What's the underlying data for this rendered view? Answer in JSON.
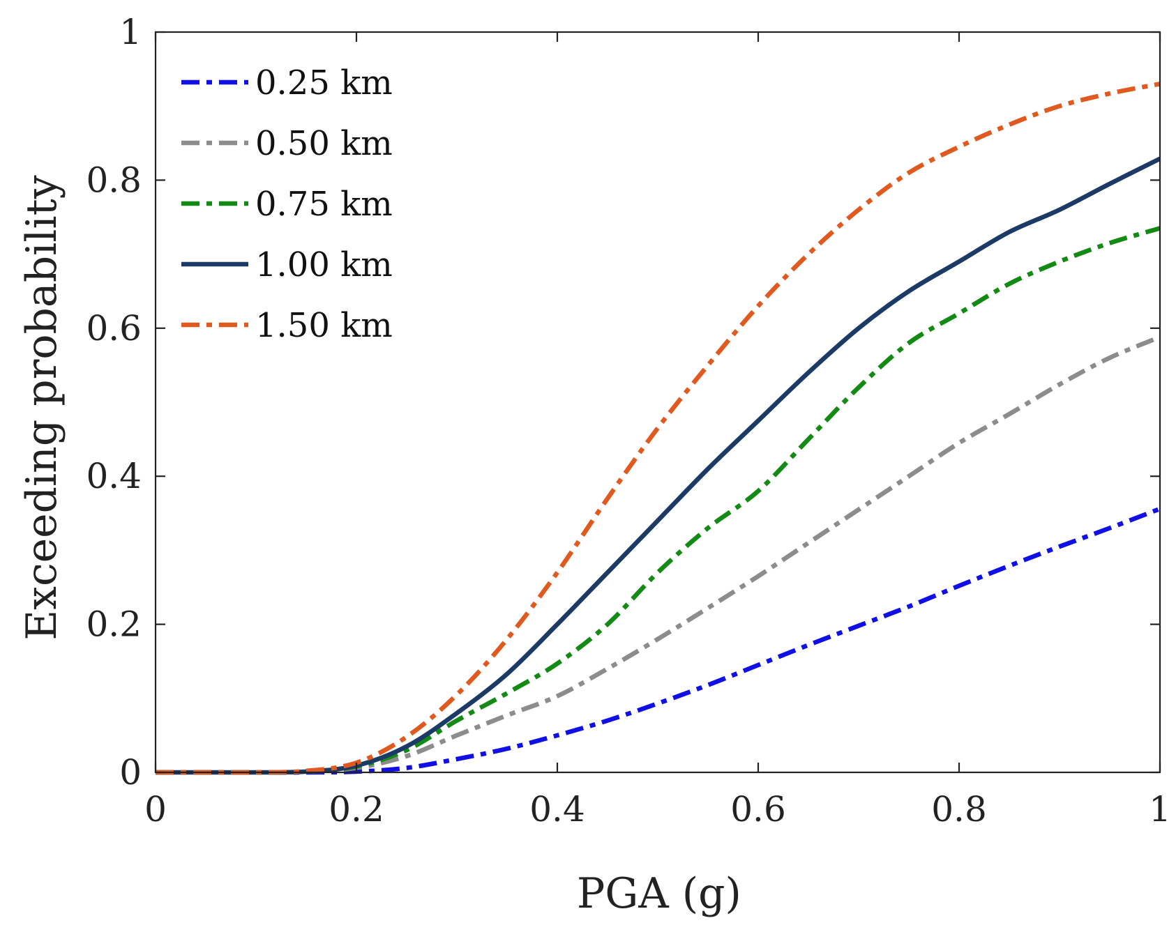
{
  "chart_data": {
    "type": "line",
    "title": "",
    "xlabel": "PGA (g)",
    "ylabel": "Exceeding probability",
    "xlim": [
      0,
      1
    ],
    "ylim": [
      0,
      1
    ],
    "xticks": [
      0,
      0.2,
      0.4,
      0.6,
      0.8,
      1
    ],
    "xtick_labels": [
      "0",
      "0.2",
      "0.4",
      "0.6",
      "0.8",
      "1"
    ],
    "yticks": [
      0,
      0.2,
      0.4,
      0.6,
      0.8,
      1
    ],
    "ytick_labels": [
      "0",
      "0.2",
      "0.4",
      "0.6",
      "0.8",
      "1"
    ],
    "grid": false,
    "legend_position": "top-left",
    "x": [
      0,
      0.05,
      0.1,
      0.15,
      0.2,
      0.25,
      0.3,
      0.35,
      0.4,
      0.45,
      0.5,
      0.55,
      0.6,
      0.65,
      0.7,
      0.75,
      0.8,
      0.85,
      0.9,
      0.95,
      1.0
    ],
    "series": [
      {
        "name": "0.25 km",
        "color": "#1010e6",
        "style": "dash-dot",
        "values": [
          0,
          0,
          0,
          0,
          0.001,
          0.006,
          0.018,
          0.032,
          0.05,
          0.07,
          0.093,
          0.118,
          0.145,
          0.172,
          0.198,
          0.224,
          0.252,
          0.279,
          0.305,
          0.33,
          0.356
        ]
      },
      {
        "name": "0.50 km",
        "color": "#8c8c8c",
        "style": "dash-dot",
        "values": [
          0,
          0,
          0,
          0.001,
          0.006,
          0.022,
          0.05,
          0.077,
          0.103,
          0.14,
          0.18,
          0.222,
          0.265,
          0.31,
          0.355,
          0.4,
          0.445,
          0.484,
          0.524,
          0.56,
          0.588
        ]
      },
      {
        "name": "0.75 km",
        "color": "#138a13",
        "style": "dash-dot",
        "values": [
          0,
          0,
          0,
          0.001,
          0.008,
          0.03,
          0.07,
          0.107,
          0.147,
          0.2,
          0.27,
          0.33,
          0.38,
          0.45,
          0.52,
          0.58,
          0.62,
          0.66,
          0.69,
          0.715,
          0.735
        ]
      },
      {
        "name": "1.00 km",
        "color": "#1b3a66",
        "style": "solid",
        "values": [
          0,
          0,
          0,
          0.001,
          0.009,
          0.035,
          0.08,
          0.133,
          0.2,
          0.27,
          0.34,
          0.41,
          0.475,
          0.54,
          0.6,
          0.65,
          0.69,
          0.73,
          0.76,
          0.795,
          0.829
        ]
      },
      {
        "name": "1.50 km",
        "color": "#e05a20",
        "style": "dash-dot",
        "values": [
          0,
          0,
          0,
          0.002,
          0.013,
          0.048,
          0.105,
          0.18,
          0.27,
          0.37,
          0.465,
          0.55,
          0.63,
          0.7,
          0.76,
          0.81,
          0.845,
          0.875,
          0.9,
          0.917,
          0.93
        ]
      }
    ]
  }
}
